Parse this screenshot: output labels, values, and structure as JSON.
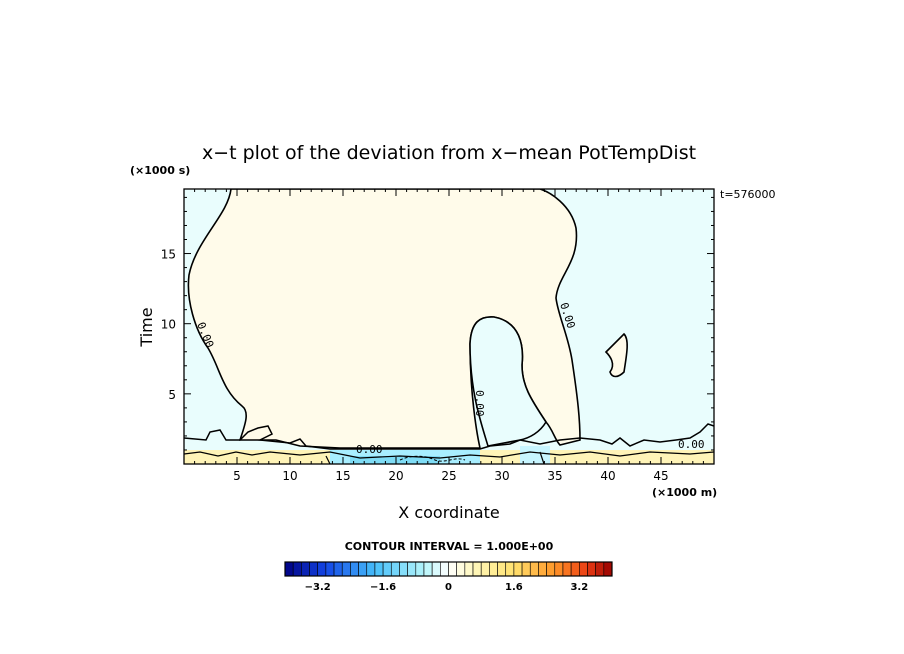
{
  "chart_data": {
    "type": "heatmap",
    "title": "x−t plot of the deviation from x−mean PotTempDist",
    "xlabel": "X coordinate",
    "ylabel": "Time",
    "x_unit": "(×1000 m)",
    "y_unit": "(×1000 s)",
    "xlim": [
      0,
      50
    ],
    "ylim": [
      0,
      19.6
    ],
    "x_ticks": [
      5,
      10,
      15,
      20,
      25,
      30,
      35,
      40,
      45
    ],
    "y_ticks": [
      5,
      10,
      15
    ],
    "time_stamp": "t=576000",
    "contour_interval_text": "CONTOUR INTERVAL = 1.000E+00",
    "contour_labels": [
      "0.00",
      "0.00",
      "0.00",
      "0.00",
      "0.00"
    ],
    "colorbar": {
      "min": -4,
      "max": 4,
      "step": 0.2,
      "tick_values": [
        -3.2,
        -1.6,
        0,
        1.6,
        3.2
      ],
      "tick_labels": [
        "−3.2",
        "−1.6",
        "0",
        "1.6",
        "3.2"
      ]
    },
    "colors": {
      "positive_region": "#fffbea",
      "negative_region": "#e9fdfd",
      "strong_positive": "#fff4b8",
      "strong_negative": "#a8eeff",
      "contour": "#000000"
    }
  }
}
